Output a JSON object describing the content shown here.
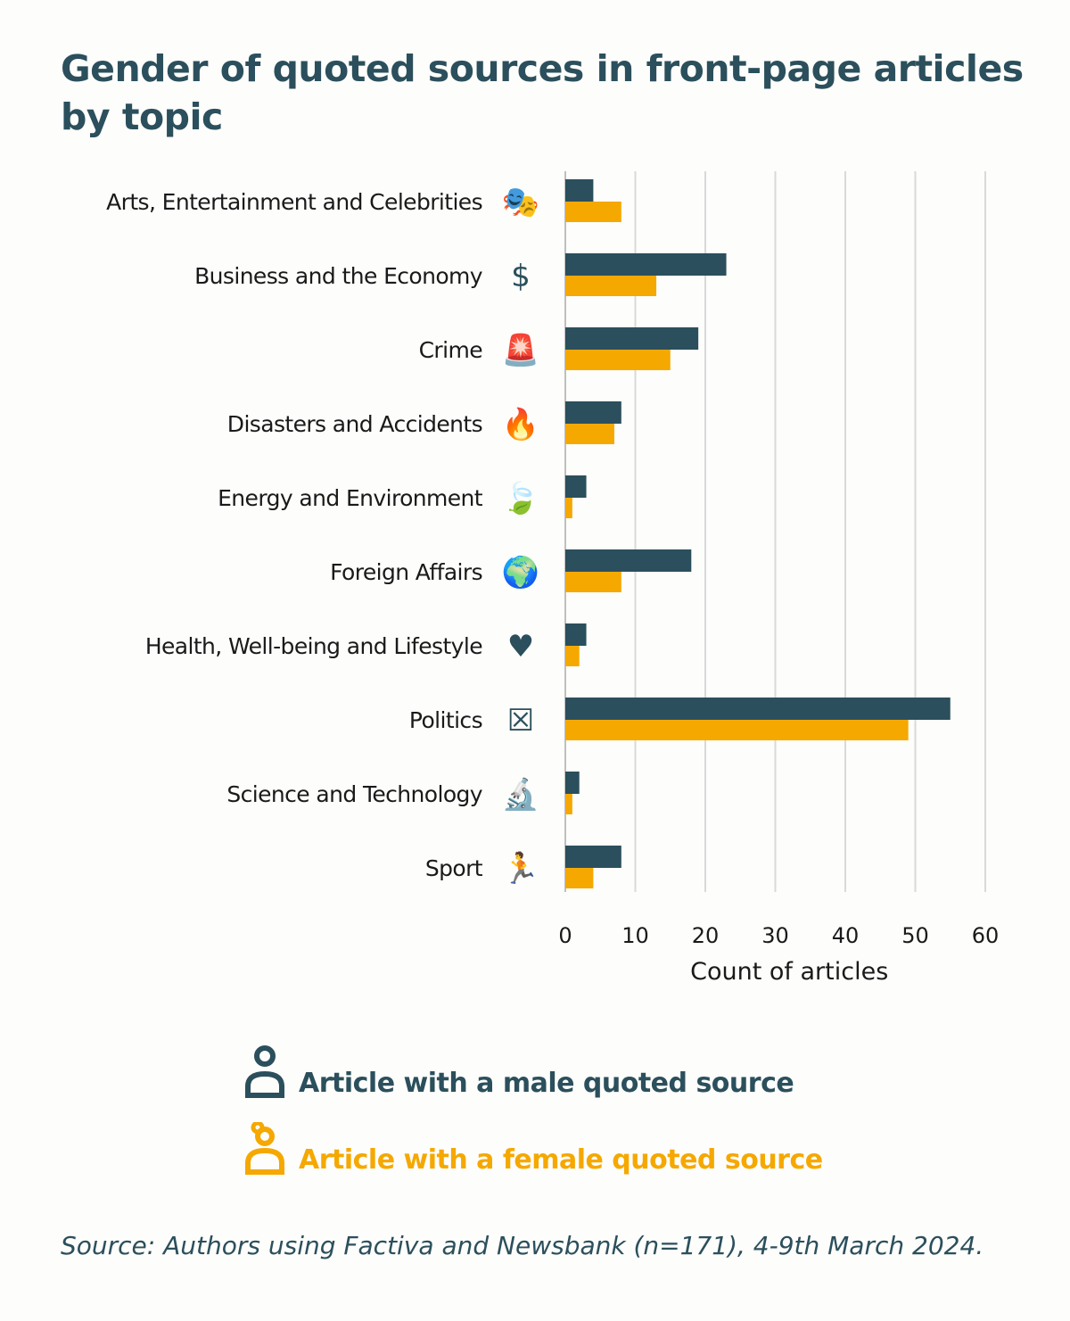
{
  "colors": {
    "male": "#2b4f5c",
    "female": "#f5a800",
    "grid": "#d9d9d9",
    "text": "#1a1a1a"
  },
  "chart_data": {
    "type": "bar",
    "orientation": "horizontal",
    "title": "Gender of quoted sources in front-page articles by topic",
    "xlabel": "Count of articles",
    "xlim": [
      0,
      60
    ],
    "xticks": [
      0,
      10,
      20,
      30,
      40,
      50,
      60
    ],
    "grid": true,
    "categories": [
      "Arts, Entertainment and Celebrities",
      "Business and the Economy",
      "Crime",
      "Disasters and Accidents",
      "Energy and Environment",
      "Foreign Affairs",
      "Health, Well-being and Lifestyle",
      "Politics",
      "Science and Technology",
      "Sport"
    ],
    "category_icons": [
      "theater-icon",
      "money-stack-icon",
      "siren-icon",
      "fire-icon",
      "leaf-icon",
      "globe-flags-icon",
      "heart-plus-icon",
      "ballot-box-icon",
      "microscope-icon",
      "runner-icon"
    ],
    "series": [
      {
        "name": "Article with a male quoted source",
        "values": [
          4,
          23,
          19,
          8,
          3,
          18,
          3,
          55,
          2,
          8
        ]
      },
      {
        "name": "Article with a female quoted source",
        "values": [
          8,
          13,
          15,
          7,
          1,
          8,
          2,
          49,
          1,
          4
        ]
      }
    ],
    "legend_position": "bottom"
  },
  "source": "Source: Authors using Factiva and Newsbank (n=171), 4-9th March 2024."
}
